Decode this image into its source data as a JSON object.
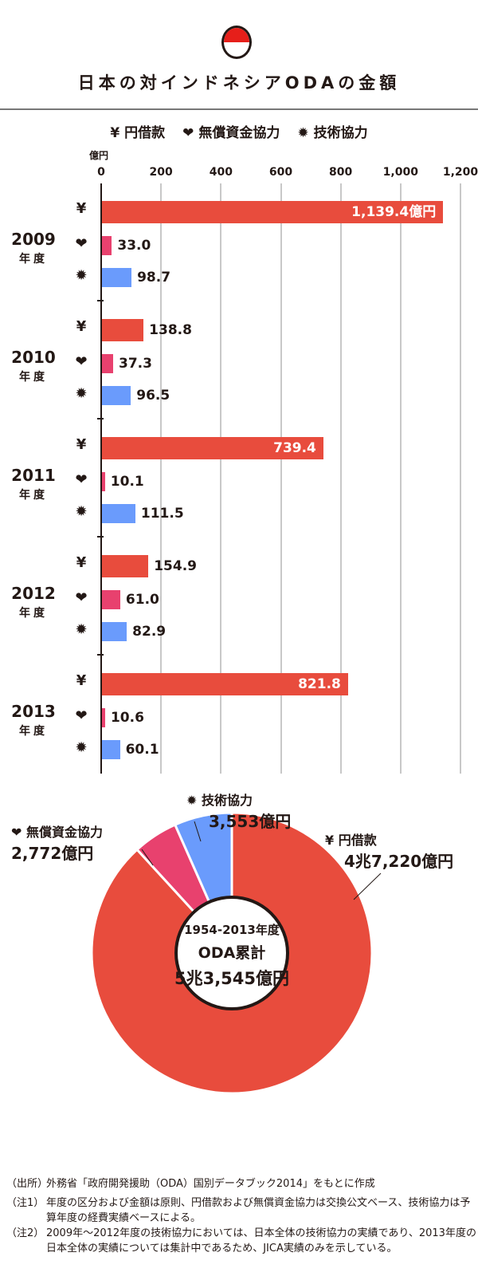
{
  "title": "日本の対インドネシアODAの金額",
  "legend": [
    {
      "icon": "yen-icon",
      "glyph": "¥",
      "label": "円借款",
      "color": "#e84c3d"
    },
    {
      "icon": "heart-icon",
      "glyph": "❤",
      "label": "無償資金協力",
      "color": "#e8416e"
    },
    {
      "icon": "gear-icon",
      "glyph": "✹",
      "label": "技術協力",
      "color": "#6a9bfc"
    }
  ],
  "chart_data": [
    {
      "type": "bar",
      "orientation": "horizontal",
      "unit": "億円",
      "xlim": [
        0,
        1200
      ],
      "ticks": [
        "0",
        "200",
        "400",
        "600",
        "800",
        "1,000",
        "1,200"
      ],
      "categories": [
        "2009",
        "2010",
        "2011",
        "2012",
        "2013"
      ],
      "category_suffix": "年度",
      "series": [
        {
          "name": "円借款",
          "values": [
            1139.4,
            138.8,
            739.4,
            154.9,
            821.8
          ],
          "labels": [
            "1,139.4億円",
            "138.8",
            "739.4",
            "154.9",
            "821.8"
          ]
        },
        {
          "name": "無償資金協力",
          "values": [
            33.0,
            37.3,
            10.1,
            61.0,
            10.6
          ],
          "labels": [
            "33.0",
            "37.3",
            "10.1",
            "61.0",
            "10.6"
          ]
        },
        {
          "name": "技術協力",
          "values": [
            98.7,
            96.5,
            111.5,
            82.9,
            60.1
          ],
          "labels": [
            "98.7",
            "96.5",
            "111.5",
            "82.9",
            "60.1"
          ]
        }
      ]
    },
    {
      "type": "pie",
      "donut": true,
      "center": {
        "line1": "1954-2013年度",
        "line2": "ODA累計",
        "line3": "5兆3,545億円"
      },
      "slices": [
        {
          "name": "円借款",
          "value": 47220,
          "label": "4兆7,220億円"
        },
        {
          "name": "無償資金協力",
          "value": 2772,
          "label": "2,772億円"
        },
        {
          "name": "技術協力",
          "value": 3553,
          "label": "3,553億円"
        }
      ]
    }
  ],
  "notes": [
    {
      "k": "（出所）",
      "t": "外務省「政府開発援助（ODA）国別データブック2014」をもとに作成"
    },
    {
      "k": "（注1）",
      "t": "年度の区分および金額は原則、円借款および無償資金協力は交換公文ベース、技術協力は予算年度の経費実績ベースによる。"
    },
    {
      "k": "（注2）",
      "t": "2009年～2012年度の技術協力においては、日本全体の技術協力の実績であり、2013年度の日本全体の実績については集計中であるため、JICA実績のみを示している。"
    }
  ]
}
